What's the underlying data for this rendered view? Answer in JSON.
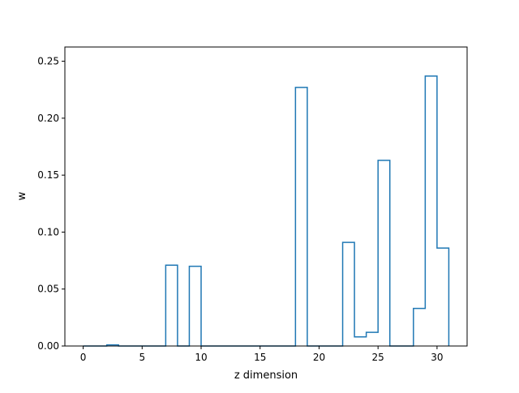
{
  "chart_data": {
    "type": "line",
    "style": "step-histogram",
    "xlabel": "z dimension",
    "ylabel": "w",
    "xlim": [
      -1.55,
      32.55
    ],
    "ylim": [
      0,
      0.2625
    ],
    "xticks": [
      0,
      5,
      10,
      15,
      20,
      25,
      30
    ],
    "xtick_labels": [
      "0",
      "5",
      "10",
      "15",
      "20",
      "25",
      "30"
    ],
    "yticks": [
      0.0,
      0.05,
      0.1,
      0.15,
      0.2,
      0.25
    ],
    "ytick_labels": [
      "0.00",
      "0.05",
      "0.10",
      "0.15",
      "0.20",
      "0.25"
    ],
    "grid": false,
    "series": [
      {
        "color": "#1f77b4",
        "bin_edges": [
          0,
          1,
          2,
          3,
          4,
          5,
          6,
          7,
          8,
          9,
          10,
          11,
          12,
          13,
          14,
          15,
          16,
          17,
          18,
          19,
          20,
          21,
          22,
          23,
          24,
          25,
          26,
          27,
          28,
          29,
          30,
          31
        ],
        "values": [
          0,
          0,
          0.001,
          0,
          0,
          0,
          0,
          0.071,
          0,
          0.07,
          0,
          0,
          0,
          0,
          0,
          0,
          0,
          0,
          0.227,
          0,
          0,
          0,
          0.091,
          0.008,
          0.012,
          0.163,
          0,
          0,
          0.033,
          0.237,
          0.086
        ]
      }
    ]
  }
}
